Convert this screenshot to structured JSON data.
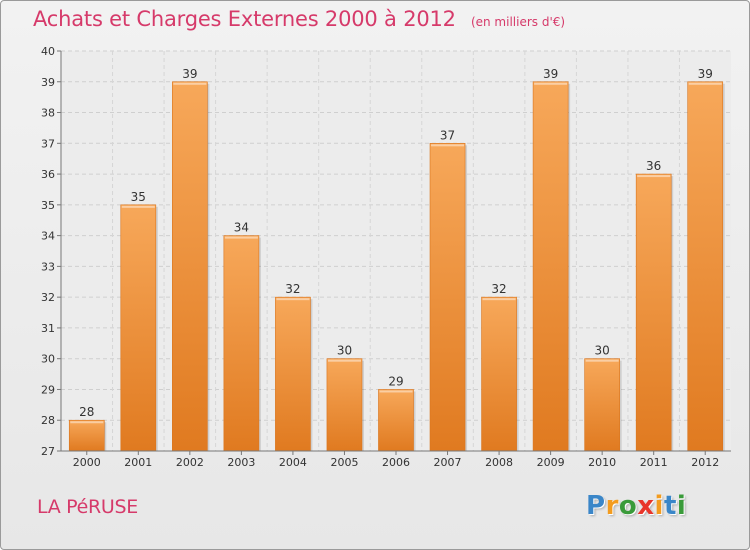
{
  "chart_data": {
    "type": "bar",
    "title": "Achats et Charges Externes 2000 à 2012",
    "unit": "(en milliers d'€)",
    "categories": [
      "2000",
      "2001",
      "2002",
      "2003",
      "2004",
      "2005",
      "2006",
      "2007",
      "2008",
      "2009",
      "2010",
      "2011",
      "2012"
    ],
    "values": [
      28,
      35,
      39,
      34,
      32,
      30,
      29,
      37,
      32,
      39,
      30,
      36,
      39
    ],
    "ylim": [
      27,
      40
    ],
    "yticks": [
      27,
      28,
      29,
      30,
      31,
      32,
      33,
      34,
      35,
      36,
      37,
      38,
      39,
      40
    ],
    "grid": true,
    "bar_color": "#f0913a"
  },
  "commune": "LA PéRUSE",
  "brand": {
    "letters": [
      "P",
      "r",
      "o",
      "x",
      "i",
      "t",
      "i"
    ],
    "colors": [
      "#3a86c8",
      "#f39c1f",
      "#3a9b3a",
      "#e8352a",
      "#f39c1f",
      "#3a86c8",
      "#3a9b3a"
    ]
  }
}
